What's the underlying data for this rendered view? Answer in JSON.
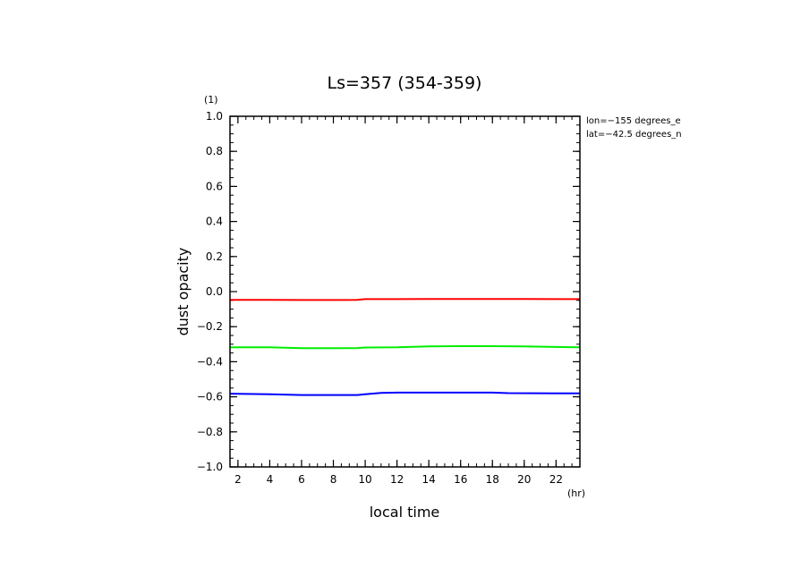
{
  "chart_data": {
    "type": "line",
    "title": "Ls=357 (354-359)",
    "xlabel": "local time",
    "ylabel": "dust opacity",
    "x_unit": "(hr)",
    "y_unit": "(1)",
    "xlim": [
      1.5,
      23.5
    ],
    "ylim": [
      -1.0,
      1.0
    ],
    "x_ticks": [
      2,
      4,
      6,
      8,
      10,
      12,
      14,
      16,
      18,
      20,
      22
    ],
    "x_tick_labels": [
      "2",
      "4",
      "6",
      "8",
      "10",
      "12",
      "14",
      "16",
      "18",
      "20",
      "22"
    ],
    "y_ticks": [
      -1.0,
      -0.8,
      -0.6,
      -0.4,
      -0.2,
      0.0,
      0.2,
      0.4,
      0.6,
      0.8,
      1.0
    ],
    "y_tick_labels": [
      "−1.0",
      "−0.8",
      "−0.6",
      "−0.4",
      "−0.2",
      "0.0",
      "0.2",
      "0.4",
      "0.6",
      "0.8",
      "1.0"
    ],
    "annotations": [
      "lon=−155 degrees_e",
      "lat=−42.5 degrees_n"
    ],
    "grid": false,
    "legend": "none",
    "series": [
      {
        "color": "#ff0000",
        "x": [
          1.5,
          4,
          6,
          8,
          9.5,
          10,
          12,
          14,
          16,
          18,
          20,
          22,
          23.5
        ],
        "y": [
          -0.047,
          -0.047,
          -0.048,
          -0.048,
          -0.047,
          -0.043,
          -0.043,
          -0.042,
          -0.042,
          -0.042,
          -0.042,
          -0.043,
          -0.043
        ]
      },
      {
        "color": "#00ee00",
        "x": [
          1.5,
          4,
          6,
          8,
          9.5,
          10,
          12,
          14,
          16,
          18,
          20,
          22,
          23.5
        ],
        "y": [
          -0.318,
          -0.318,
          -0.323,
          -0.323,
          -0.322,
          -0.319,
          -0.318,
          -0.312,
          -0.311,
          -0.311,
          -0.312,
          -0.316,
          -0.318
        ]
      },
      {
        "color": "#0000ff",
        "x": [
          1.5,
          4,
          6,
          8,
          9.5,
          10,
          11,
          12,
          14,
          16,
          18,
          19,
          22,
          23.5
        ],
        "y": [
          -0.582,
          -0.585,
          -0.59,
          -0.59,
          -0.59,
          -0.585,
          -0.578,
          -0.576,
          -0.576,
          -0.576,
          -0.576,
          -0.579,
          -0.58,
          -0.58
        ]
      }
    ]
  }
}
